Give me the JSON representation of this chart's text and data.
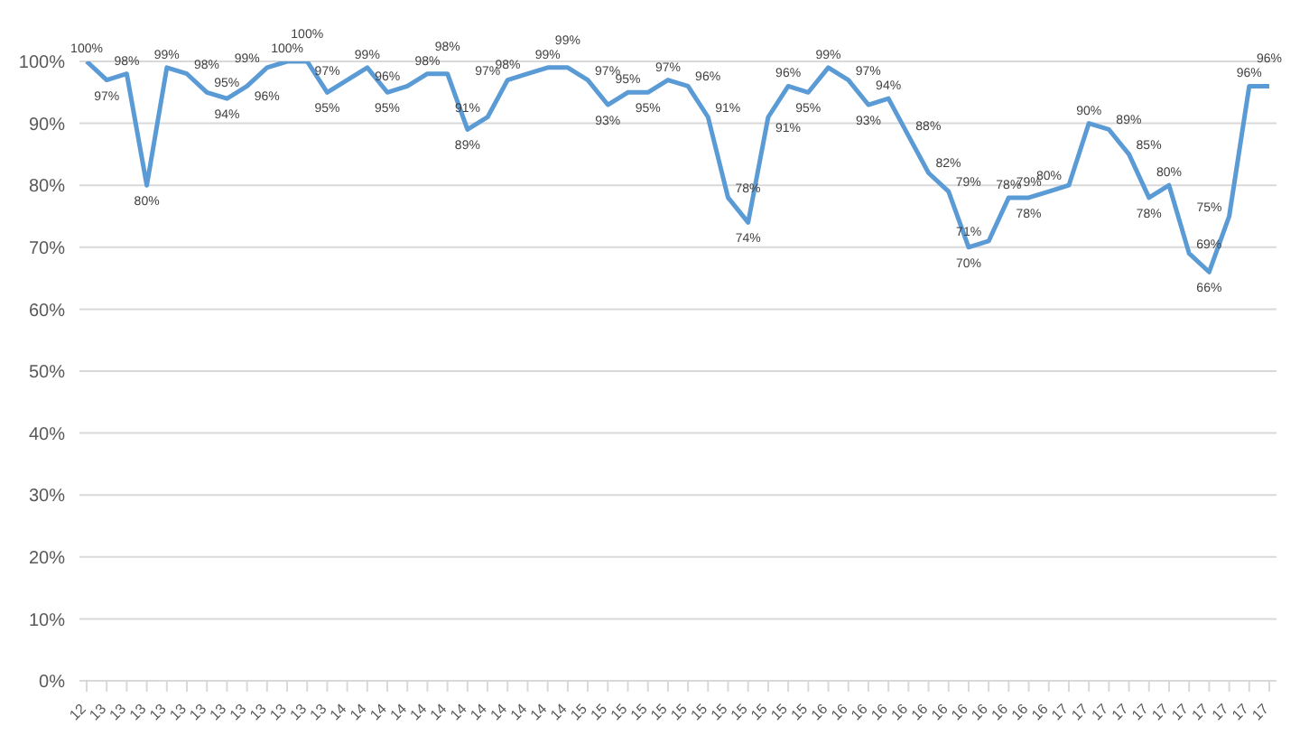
{
  "chart_data": {
    "type": "line",
    "categories": [
      "12",
      "13",
      "13",
      "13",
      "13",
      "13",
      "13",
      "13",
      "13",
      "13",
      "13",
      "13",
      "13",
      "14",
      "14",
      "14",
      "14",
      "14",
      "14",
      "14",
      "14",
      "14",
      "14",
      "14",
      "14",
      "15",
      "15",
      "15",
      "15",
      "15",
      "15",
      "15",
      "15",
      "15",
      "15",
      "15",
      "15",
      "16",
      "16",
      "16",
      "16",
      "16",
      "16",
      "16",
      "16",
      "16",
      "16",
      "16",
      "16",
      "17",
      "17",
      "17",
      "17",
      "17",
      "17",
      "17",
      "17",
      "17",
      "17",
      "17"
    ],
    "series": [
      {
        "color": "#5b9bd5",
        "values": [
          100,
          97,
          98,
          80,
          99,
          98,
          95,
          94,
          96,
          99,
          100,
          100,
          95,
          97,
          99,
          95,
          96,
          98,
          98,
          89,
          91,
          97,
          98,
          99,
          99,
          97,
          93,
          95,
          95,
          97,
          96,
          91,
          78,
          74,
          91,
          96,
          95,
          99,
          97,
          93,
          94,
          88,
          82,
          79,
          70,
          71,
          78,
          78,
          79,
          80,
          90,
          89,
          85,
          78,
          80,
          69,
          66,
          75,
          96,
          96
        ],
        "value_labels": [
          "100%",
          "97%",
          "98%",
          "80%",
          "99%",
          "98%",
          "95%",
          "94%",
          "96%",
          "99%",
          "100%",
          "100%",
          "95%",
          "97%",
          "99%",
          "95%",
          "96%",
          "98%",
          "98%",
          "89%",
          "91%",
          "97%",
          "98%",
          "99%",
          "99%",
          "97%",
          "93%",
          "95%",
          "95%",
          "97%",
          "96%",
          "91%",
          "78%",
          "74%",
          "91%",
          "96%",
          "95%",
          "99%",
          "97%",
          "93%",
          "94%",
          "88%",
          "82%",
          "79%",
          "70%",
          "71%",
          "78%",
          "78%",
          "79%",
          "80%",
          "90%",
          "89%",
          "85%",
          "78%",
          "80%",
          "69%",
          "66%",
          "75%",
          "96%",
          "96%"
        ]
      }
    ],
    "ylim": [
      0,
      100
    ],
    "yticks": [
      {
        "value": 0,
        "label": "0%"
      },
      {
        "value": 10,
        "label": "10%"
      },
      {
        "value": 20,
        "label": "20%"
      },
      {
        "value": 30,
        "label": "30%"
      },
      {
        "value": 40,
        "label": "40%"
      },
      {
        "value": 50,
        "label": "50%"
      },
      {
        "value": 60,
        "label": "60%"
      },
      {
        "value": 70,
        "label": "70%"
      },
      {
        "value": 80,
        "label": "80%"
      },
      {
        "value": 90,
        "label": "90%"
      },
      {
        "value": 100,
        "label": "100%"
      }
    ],
    "grid": "y",
    "marker": "none",
    "line_style": "solid",
    "legend": false
  }
}
